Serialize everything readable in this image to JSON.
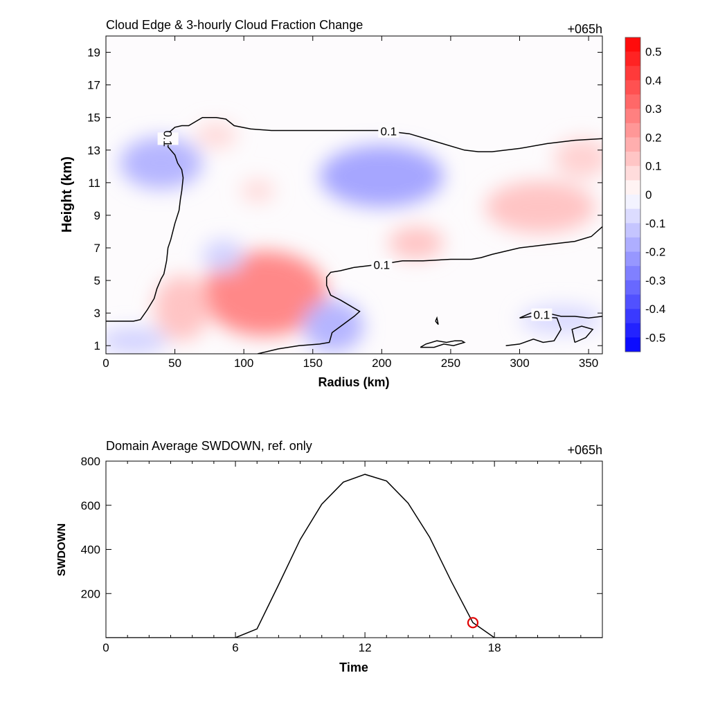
{
  "chart_data": [
    {
      "type": "heatmap",
      "title": "Cloud Edge & 3-hourly Cloud Fraction Change",
      "time_label": "+065h",
      "xlabel": "Radius (km)",
      "ylabel": "Height (km)",
      "xlim": [
        0,
        360
      ],
      "ylim": [
        0.5,
        20
      ],
      "xticks": [
        "0",
        "50",
        "100",
        "150",
        "200",
        "250",
        "300",
        "350"
      ],
      "yticks": [
        "1",
        "3",
        "5",
        "7",
        "9",
        "11",
        "13",
        "15",
        "17",
        "19"
      ],
      "colorbar": {
        "range": [
          -0.55,
          0.55
        ],
        "tick_values": [
          0.5,
          0.4,
          0.3,
          0.2,
          0.1,
          0,
          -0.1,
          -0.2,
          -0.3,
          -0.4,
          -0.5
        ],
        "tick_labels": [
          "0.5",
          "0.4",
          "0.3",
          "0.2",
          "0.1",
          "0",
          "-0.1",
          "-0.2",
          "-0.3",
          "-0.4",
          "-0.5"
        ],
        "low_color": "#0000ff",
        "mid_color": "#ffffff",
        "high_color": "#ff0000"
      },
      "anomalies": [
        {
          "x": 115,
          "y": 4.2,
          "rx": 45,
          "ry": 2.6,
          "value": 0.16
        },
        {
          "x": 55,
          "y": 3.3,
          "rx": 20,
          "ry": 2.0,
          "value": 0.08
        },
        {
          "x": 200,
          "y": 11.4,
          "rx": 45,
          "ry": 1.9,
          "value": -0.12
        },
        {
          "x": 40,
          "y": 12.2,
          "rx": 30,
          "ry": 1.6,
          "value": -0.1
        },
        {
          "x": 165,
          "y": 2.2,
          "rx": 22,
          "ry": 1.6,
          "value": -0.1
        },
        {
          "x": 315,
          "y": 9.5,
          "rx": 40,
          "ry": 1.6,
          "value": 0.08
        },
        {
          "x": 225,
          "y": 7.3,
          "rx": 20,
          "ry": 1.0,
          "value": 0.08
        },
        {
          "x": 85,
          "y": 6.5,
          "rx": 15,
          "ry": 1.0,
          "value": -0.06
        },
        {
          "x": 80,
          "y": 13.9,
          "rx": 15,
          "ry": 0.8,
          "value": 0.05
        },
        {
          "x": 110,
          "y": 10.5,
          "rx": 12,
          "ry": 0.7,
          "value": 0.05
        },
        {
          "x": 20,
          "y": 1.3,
          "rx": 25,
          "ry": 0.8,
          "value": -0.06
        },
        {
          "x": 345,
          "y": 12.5,
          "rx": 20,
          "ry": 1.2,
          "value": 0.06
        },
        {
          "x": 330,
          "y": 2.6,
          "rx": 30,
          "ry": 0.9,
          "value": -0.05
        }
      ],
      "contour_level_label": "0.1",
      "contours": [
        {
          "label": "0.1",
          "points": [
            [
              0,
              2.5
            ],
            [
              20,
              2.5
            ],
            [
              25,
              2.6
            ],
            [
              30,
              3.2
            ],
            [
              35,
              3.9
            ],
            [
              37,
              4.5
            ],
            [
              40,
              5.1
            ],
            [
              42,
              5.4
            ],
            [
              44,
              6.2
            ],
            [
              45,
              7.0
            ],
            [
              47,
              7.5
            ],
            [
              50,
              8.5
            ],
            [
              53,
              9.3
            ],
            [
              54,
              10.0
            ],
            [
              55,
              10.5
            ],
            [
              56,
              11.3
            ],
            [
              55,
              11.8
            ],
            [
              52,
              12.2
            ],
            [
              50,
              12.7
            ],
            [
              47,
              13.0
            ],
            [
              45,
              13.2
            ],
            [
              46,
              14.1
            ],
            [
              50,
              14.4
            ],
            [
              55,
              14.5
            ],
            [
              60,
              14.5
            ],
            [
              70,
              15.0
            ],
            [
              80,
              15.0
            ],
            [
              87,
              14.9
            ],
            [
              93,
              14.5
            ],
            [
              105,
              14.3
            ],
            [
              120,
              14.2
            ],
            [
              140,
              14.2
            ],
            [
              160,
              14.2
            ],
            [
              180,
              14.2
            ],
            [
              200,
              14.2
            ],
            [
              220,
              14.0
            ],
            [
              240,
              13.5
            ],
            [
              260,
              13.0
            ],
            [
              270,
              12.9
            ],
            [
              280,
              12.9
            ],
            [
              300,
              13.1
            ],
            [
              320,
              13.4
            ],
            [
              340,
              13.6
            ],
            [
              360,
              13.7
            ]
          ]
        },
        {
          "label": "0.1",
          "points": [
            [
              110,
              0.5
            ],
            [
              125,
              0.8
            ],
            [
              140,
              1.0
            ],
            [
              155,
              1.1
            ],
            [
              162,
              1.2
            ],
            [
              164,
              1.8
            ],
            [
              172,
              2.3
            ],
            [
              180,
              2.8
            ],
            [
              184,
              3.1
            ],
            [
              178,
              3.4
            ],
            [
              170,
              3.8
            ],
            [
              163,
              4.1
            ],
            [
              160,
              4.7
            ],
            [
              160,
              5.2
            ],
            [
              163,
              5.5
            ],
            [
              170,
              5.6
            ],
            [
              180,
              5.8
            ],
            [
              190,
              5.9
            ],
            [
              200,
              6.0
            ],
            [
              215,
              6.2
            ],
            [
              230,
              6.2
            ],
            [
              250,
              6.3
            ],
            [
              265,
              6.3
            ],
            [
              272,
              6.4
            ],
            [
              280,
              6.6
            ],
            [
              300,
              7.0
            ],
            [
              320,
              7.2
            ],
            [
              340,
              7.4
            ],
            [
              352,
              7.7
            ],
            [
              360,
              8.3
            ]
          ]
        },
        {
          "label": "0.1",
          "points": [
            [
              300,
              2.7
            ],
            [
              308,
              3.0
            ],
            [
              320,
              3.0
            ],
            [
              330,
              2.8
            ],
            [
              340,
              2.8
            ],
            [
              350,
              2.7
            ],
            [
              360,
              2.8
            ]
          ]
        },
        {
          "label": "",
          "points": [
            [
              228,
              0.9
            ],
            [
              232,
              1.1
            ],
            [
              240,
              1.3
            ],
            [
              247,
              1.2
            ],
            [
              253,
              1.3
            ],
            [
              258,
              1.3
            ],
            [
              260,
              1.2
            ],
            [
              252,
              1.0
            ],
            [
              245,
              1.1
            ],
            [
              238,
              0.9
            ],
            [
              228,
              0.9
            ]
          ]
        },
        {
          "label": "",
          "points": [
            [
              290,
              1.0
            ],
            [
              300,
              1.1
            ],
            [
              310,
              1.4
            ],
            [
              317,
              1.2
            ],
            [
              325,
              1.3
            ],
            [
              330,
              2.0
            ],
            [
              327,
              2.7
            ],
            [
              310,
              2.8
            ],
            [
              300,
              2.7
            ]
          ]
        },
        {
          "label": "",
          "points": [
            [
              340,
              1.2
            ],
            [
              348,
              1.5
            ],
            [
              353,
              2.0
            ],
            [
              345,
              2.2
            ],
            [
              338,
              2.0
            ],
            [
              340,
              1.2
            ]
          ]
        },
        {
          "label": "",
          "points": [
            [
              239,
              2.5
            ],
            [
              241,
              2.3
            ],
            [
              240,
              2.7
            ],
            [
              239,
              2.5
            ]
          ]
        }
      ]
    },
    {
      "type": "line",
      "title": "Domain Average SWDOWN, ref. only",
      "time_label": "+065h",
      "xlabel": "Time",
      "ylabel": "SWDOWN",
      "xlim": [
        0,
        23
      ],
      "ylim": [
        0,
        800
      ],
      "xticks": [
        "0",
        "6",
        "12",
        "18"
      ],
      "yticks": [
        "200",
        "400",
        "600",
        "800"
      ],
      "x": [
        0,
        1,
        2,
        3,
        4,
        5,
        6,
        7,
        8,
        9,
        10,
        11,
        12,
        13,
        14,
        15,
        16,
        17,
        18,
        19,
        20,
        21,
        22,
        23
      ],
      "values": [
        0,
        0,
        0,
        0,
        0,
        0,
        0,
        40,
        240,
        445,
        605,
        705,
        740,
        710,
        610,
        455,
        255,
        68,
        0,
        0,
        0,
        0,
        0,
        0
      ],
      "marker": {
        "x": 17,
        "y": 68,
        "color": "#e00000"
      }
    }
  ]
}
